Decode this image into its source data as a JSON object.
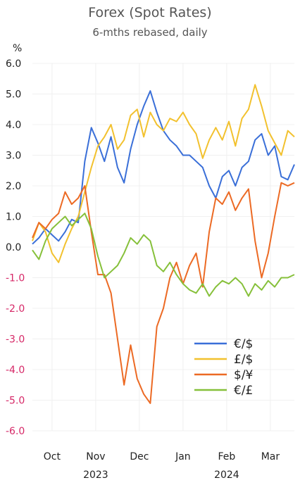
{
  "chart_data": {
    "type": "line",
    "title": "Forex (Spot Rates)",
    "subtitle": "6-mths rebased, daily",
    "ylabel": "%",
    "ylim": [
      -6.0,
      6.0
    ],
    "yticks": [
      "6.0",
      "5.0",
      "4.0",
      "3.0",
      "2.0",
      "1.0",
      "0.0",
      "-1.0",
      "-2.0",
      "-3.0",
      "-4.0",
      "-5.0",
      "-6.0"
    ],
    "ytick_values": [
      6,
      5,
      4,
      3,
      2,
      1,
      0,
      -1,
      -2,
      -3,
      -4,
      -5,
      -6
    ],
    "xlim": [
      0,
      6
    ],
    "xticks": [
      {
        "label": "Oct",
        "x": 0.45
      },
      {
        "label": "Nov",
        "x": 1.45
      },
      {
        "label": "Dec",
        "x": 2.45
      },
      {
        "label": "Jan",
        "x": 3.45
      },
      {
        "label": "Feb",
        "x": 4.45
      },
      {
        "label": "Mar",
        "x": 5.45
      }
    ],
    "xyears": [
      {
        "label": "2023",
        "x": 1.45
      },
      {
        "label": "2024",
        "x": 4.45
      }
    ],
    "grid": true,
    "legend_position": "lower-right",
    "series": [
      {
        "name": "€/$",
        "color": "#3a6fd8",
        "x": [
          0,
          0.15,
          0.3,
          0.45,
          0.6,
          0.75,
          0.9,
          1.05,
          1.2,
          1.35,
          1.5,
          1.65,
          1.8,
          1.95,
          2.1,
          2.25,
          2.4,
          2.55,
          2.7,
          2.85,
          3.0,
          3.15,
          3.3,
          3.45,
          3.6,
          3.75,
          3.9,
          4.05,
          4.2,
          4.35,
          4.5,
          4.65,
          4.8,
          4.95,
          5.1,
          5.25,
          5.4,
          5.55,
          5.7,
          5.85,
          6.0
        ],
        "y": [
          0.1,
          0.3,
          0.6,
          0.4,
          0.2,
          0.5,
          0.9,
          0.8,
          2.8,
          3.9,
          3.4,
          2.8,
          3.6,
          2.6,
          2.1,
          3.2,
          4.0,
          4.6,
          5.1,
          4.4,
          3.8,
          3.5,
          3.3,
          3.0,
          3.0,
          2.8,
          2.6,
          2.0,
          1.6,
          2.3,
          2.5,
          2.0,
          2.6,
          2.8,
          3.5,
          3.7,
          3.0,
          3.3,
          2.3,
          2.2,
          2.7
        ]
      },
      {
        "name": "£/$",
        "color": "#f2c12e",
        "x": [
          0,
          0.15,
          0.3,
          0.45,
          0.6,
          0.75,
          0.9,
          1.05,
          1.2,
          1.35,
          1.5,
          1.65,
          1.8,
          1.95,
          2.1,
          2.25,
          2.4,
          2.55,
          2.7,
          2.85,
          3.0,
          3.15,
          3.3,
          3.45,
          3.6,
          3.75,
          3.9,
          4.05,
          4.2,
          4.35,
          4.5,
          4.65,
          4.8,
          4.95,
          5.1,
          5.25,
          5.4,
          5.55,
          5.7,
          5.85,
          6.0
        ],
        "y": [
          0.2,
          0.8,
          0.5,
          -0.2,
          -0.5,
          0.1,
          0.6,
          1.0,
          1.8,
          2.6,
          3.3,
          3.6,
          4.0,
          3.2,
          3.5,
          4.3,
          4.5,
          3.6,
          4.4,
          4.0,
          3.8,
          4.2,
          4.1,
          4.4,
          4.0,
          3.7,
          2.9,
          3.5,
          3.9,
          3.5,
          4.1,
          3.3,
          4.2,
          4.5,
          5.3,
          4.6,
          3.8,
          3.4,
          3.0,
          3.8,
          3.6
        ]
      },
      {
        "name": "$/¥",
        "color": "#ec6a24",
        "x": [
          0,
          0.15,
          0.3,
          0.45,
          0.6,
          0.75,
          0.9,
          1.05,
          1.2,
          1.35,
          1.5,
          1.65,
          1.8,
          1.95,
          2.1,
          2.25,
          2.4,
          2.55,
          2.7,
          2.85,
          3.0,
          3.15,
          3.3,
          3.45,
          3.6,
          3.75,
          3.9,
          4.05,
          4.2,
          4.35,
          4.5,
          4.65,
          4.8,
          4.95,
          5.1,
          5.25,
          5.4,
          5.55,
          5.7,
          5.85,
          6.0
        ],
        "y": [
          0.3,
          0.8,
          0.6,
          0.9,
          1.1,
          1.8,
          1.4,
          1.6,
          2.0,
          0.5,
          -0.9,
          -0.9,
          -1.5,
          -3.0,
          -4.5,
          -3.2,
          -4.3,
          -4.8,
          -5.1,
          -2.6,
          -2.0,
          -1.0,
          -0.5,
          -1.2,
          -0.6,
          -0.2,
          -1.3,
          0.5,
          1.6,
          1.4,
          1.8,
          1.2,
          1.6,
          1.9,
          0.2,
          -1.0,
          -0.2,
          1.0,
          2.1,
          2.0,
          2.1
        ]
      },
      {
        "name": "€/£",
        "color": "#86c03a",
        "x": [
          0,
          0.15,
          0.3,
          0.45,
          0.6,
          0.75,
          0.9,
          1.05,
          1.2,
          1.35,
          1.5,
          1.65,
          1.8,
          1.95,
          2.1,
          2.25,
          2.4,
          2.55,
          2.7,
          2.85,
          3.0,
          3.15,
          3.3,
          3.45,
          3.6,
          3.75,
          3.9,
          4.05,
          4.2,
          4.35,
          4.5,
          4.65,
          4.8,
          4.95,
          5.1,
          5.25,
          5.4,
          5.55,
          5.7,
          5.85,
          6.0
        ],
        "y": [
          -0.1,
          -0.4,
          0.2,
          0.6,
          0.8,
          1.0,
          0.7,
          0.9,
          1.1,
          0.6,
          -0.3,
          -1.0,
          -0.8,
          -0.6,
          -0.2,
          0.3,
          0.1,
          0.4,
          0.2,
          -0.6,
          -0.8,
          -0.5,
          -0.9,
          -1.2,
          -1.4,
          -1.5,
          -1.2,
          -1.6,
          -1.3,
          -1.1,
          -1.2,
          -1.0,
          -1.2,
          -1.6,
          -1.2,
          -1.4,
          -1.1,
          -1.3,
          -1.0,
          -1.0,
          -0.9
        ]
      }
    ]
  }
}
